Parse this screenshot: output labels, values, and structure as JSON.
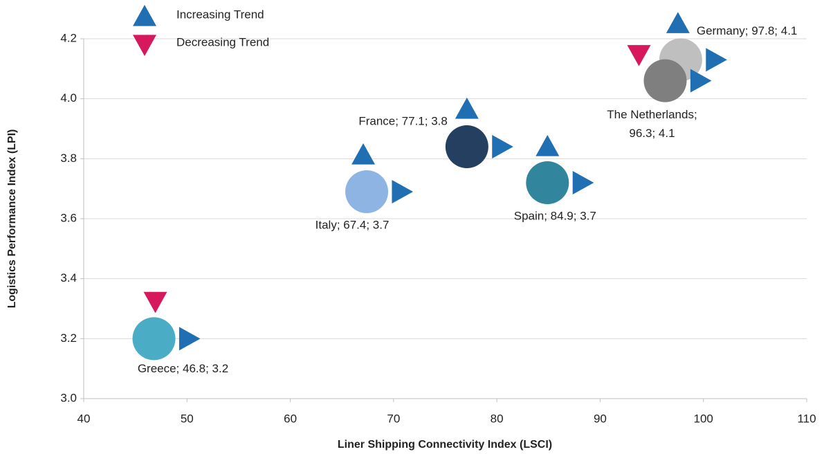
{
  "chart_data": {
    "type": "scatter",
    "x_label": "Liner Shipping Connectivity Index (LSCI)",
    "y_label": "Logistics Performance Index (LPI)",
    "xlim": [
      40,
      110
    ],
    "xticks": [
      40,
      50,
      60,
      70,
      80,
      90,
      100,
      110
    ],
    "ylim": [
      3.0,
      4.2
    ],
    "yticks": [
      {
        "value": 3,
        "label": "3.0"
      },
      3.2,
      3.4,
      3.6,
      3.8,
      {
        "value": 4,
        "label": "4.0"
      },
      4.2
    ],
    "grid": true,
    "legend": [
      {
        "name": "Increasing Trend",
        "color": "#1f6fb2"
      },
      {
        "name": "Decreasing Trend",
        "color": "#d8185c"
      }
    ],
    "points": [
      {
        "label": [
          "Greece; 46.8; 3.2"
        ],
        "x": 46.8,
        "y": 3.2,
        "color": "#4bacc6",
        "lpi_trend": "Decreasing Trend",
        "lsci_trend": "Increasing Trend"
      },
      {
        "label": [
          "Italy; 67.4; 3.7"
        ],
        "x": 67.4,
        "y": 3.69,
        "color": "#8eb4e3",
        "lpi_trend": "Increasing Trend",
        "lsci_trend": "Increasing Trend"
      },
      {
        "label": [
          "France; 77.1; 3.8"
        ],
        "x": 77.1,
        "y": 3.84,
        "color": "#243f60",
        "lpi_trend": "Increasing Trend",
        "lsci_trend": "Increasing Trend"
      },
      {
        "label": [
          "Spain; 84.9; 3.7"
        ],
        "x": 84.9,
        "y": 3.72,
        "color": "#31859c",
        "lpi_trend": "Increasing Trend",
        "lsci_trend": "Increasing Trend"
      },
      {
        "label": [
          "Germany; 97.8; 4.1"
        ],
        "x": 97.8,
        "y": 4.13,
        "color": "#bfbfbf",
        "lpi_trend": "Increasing Trend",
        "lsci_trend": "Increasing Trend"
      },
      {
        "label": [
          "The Netherlands;",
          "96.3; 4.1"
        ],
        "x": 96.3,
        "y": 4.06,
        "color": "#7f7f7f",
        "lpi_trend": "Decreasing Trend",
        "lsci_trend": "Increasing Trend"
      }
    ]
  }
}
